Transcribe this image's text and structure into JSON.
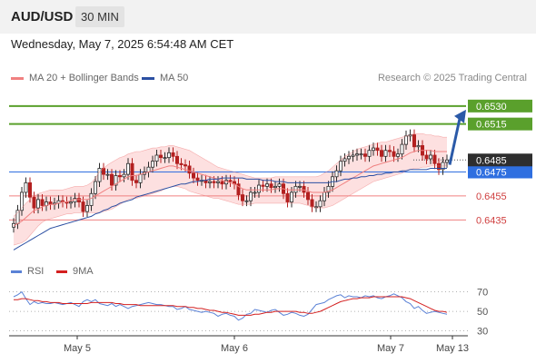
{
  "header": {
    "symbol": "AUD/USD",
    "timeframe": "30 MIN",
    "datetime": "Wednesday, May 7, 2025 6:54:48 AM CET"
  },
  "legend": {
    "bb_label": "MA 20 + Bollinger Bands",
    "ma50_label": "MA 50",
    "copyright": "Research © 2025 Trading Central",
    "rsi_label": "RSI",
    "rsi_ma_label": "9MA"
  },
  "colors": {
    "up_candle": "#2c2c2c",
    "down_candle": "#b32020",
    "bb_fill": "#fde0e0",
    "bb_line": "#f08080",
    "ma50": "#2b4fa2",
    "target": "#5aa02c",
    "support": "#f08080",
    "pivot": "#2f6fe0",
    "arrow": "#2b5aa8",
    "rsi": "#5b82d6",
    "rsi_ma": "#d42020"
  },
  "chart_data": [
    {
      "type": "candlestick",
      "x_ticks": [
        "May 5",
        "May 6",
        "May 7",
        "May 13"
      ],
      "ylim": [
        0.6405,
        0.6545
      ],
      "levels": [
        {
          "price": 0.653,
          "label": "0.6530",
          "kind": "target"
        },
        {
          "price": 0.6515,
          "label": "0.6515",
          "kind": "target"
        },
        {
          "price": 0.6475,
          "label": "0.6475",
          "kind": "pivot"
        },
        {
          "price": 0.6455,
          "label": "0.6455",
          "kind": "support"
        },
        {
          "price": 0.6435,
          "label": "0.6435",
          "kind": "support"
        }
      ],
      "last_price": {
        "price": 0.6485,
        "label": "0.6485"
      },
      "close": [
        0.6432,
        0.6443,
        0.6458,
        0.6466,
        0.6454,
        0.6445,
        0.6452,
        0.6447,
        0.645,
        0.6448,
        0.6449,
        0.6451,
        0.645,
        0.6449,
        0.645,
        0.6453,
        0.645,
        0.6442,
        0.6447,
        0.6457,
        0.6467,
        0.6478,
        0.6473,
        0.6473,
        0.6464,
        0.6472,
        0.6471,
        0.6473,
        0.6482,
        0.6468,
        0.6466,
        0.6473,
        0.6475,
        0.6479,
        0.6484,
        0.6489,
        0.6487,
        0.6487,
        0.6491,
        0.6488,
        0.6482,
        0.6481,
        0.648,
        0.6474,
        0.647,
        0.6468,
        0.6468,
        0.6466,
        0.6467,
        0.6466,
        0.6467,
        0.6465,
        0.6468,
        0.6467,
        0.6465,
        0.6456,
        0.6451,
        0.6451,
        0.6458,
        0.6458,
        0.6464,
        0.6463,
        0.6465,
        0.6462,
        0.6463,
        0.6465,
        0.6457,
        0.645,
        0.6458,
        0.6463,
        0.6463,
        0.6458,
        0.6452,
        0.6446,
        0.6446,
        0.6451,
        0.6458,
        0.6463,
        0.6471,
        0.6476,
        0.6484,
        0.6486,
        0.6488,
        0.6489,
        0.649,
        0.649,
        0.6488,
        0.6493,
        0.6495,
        0.6493,
        0.6488,
        0.6493,
        0.6492,
        0.6488,
        0.649,
        0.6498,
        0.6505,
        0.6506,
        0.6496,
        0.6497,
        0.6489,
        0.6486,
        0.6489,
        0.6482,
        0.6477,
        0.6483,
        0.6485
      ],
      "ma20": [
        0.643,
        0.6432,
        0.6434,
        0.6437,
        0.644,
        0.6443,
        0.6444,
        0.6446,
        0.6447,
        0.6448,
        0.6448,
        0.6449,
        0.645,
        0.645,
        0.6451,
        0.6452,
        0.6452,
        0.6452,
        0.6452,
        0.6453,
        0.6455,
        0.6457,
        0.6459,
        0.6461,
        0.6463,
        0.6465,
        0.6467,
        0.6469,
        0.6471,
        0.6472,
        0.6472,
        0.6473,
        0.6474,
        0.6475,
        0.6476,
        0.6477,
        0.6478,
        0.6479,
        0.648,
        0.648,
        0.6479,
        0.6478,
        0.6477,
        0.6476,
        0.6475,
        0.6474,
        0.6473,
        0.6472,
        0.6471,
        0.647,
        0.6469,
        0.6468,
        0.6467,
        0.6466,
        0.6465,
        0.6463,
        0.6461,
        0.646,
        0.646,
        0.646,
        0.646,
        0.646,
        0.646,
        0.646,
        0.6461,
        0.6461,
        0.6461,
        0.646,
        0.646,
        0.646,
        0.646,
        0.646,
        0.6459,
        0.6458,
        0.6458,
        0.6458,
        0.6458,
        0.6459,
        0.646,
        0.6462,
        0.6464,
        0.6466,
        0.6468,
        0.647,
        0.6472,
        0.6474,
        0.6476,
        0.6478,
        0.648,
        0.6481,
        0.6482,
        0.6483,
        0.6484,
        0.6485,
        0.6486,
        0.6487,
        0.6489,
        0.6491,
        0.6492,
        0.6493,
        0.6493,
        0.6493,
        0.6493,
        0.6492,
        0.6492,
        0.6492,
        0.6492
      ],
      "bb_upper": [
        0.6438,
        0.6441,
        0.6445,
        0.6449,
        0.6452,
        0.6455,
        0.6457,
        0.6458,
        0.6459,
        0.646,
        0.646,
        0.646,
        0.646,
        0.6461,
        0.6462,
        0.6463,
        0.6463,
        0.6463,
        0.6464,
        0.6466,
        0.647,
        0.6475,
        0.6478,
        0.6481,
        0.6483,
        0.6485,
        0.6487,
        0.6488,
        0.649,
        0.6491,
        0.6492,
        0.6492,
        0.6493,
        0.6494,
        0.6495,
        0.6495,
        0.6496,
        0.6496,
        0.6497,
        0.6497,
        0.6496,
        0.6495,
        0.6494,
        0.6493,
        0.6491,
        0.6489,
        0.6487,
        0.6485,
        0.6483,
        0.6481,
        0.6479,
        0.6478,
        0.6477,
        0.6476,
        0.6475,
        0.6474,
        0.6473,
        0.6472,
        0.6471,
        0.647,
        0.647,
        0.647,
        0.647,
        0.647,
        0.6471,
        0.6471,
        0.6471,
        0.6471,
        0.6471,
        0.6471,
        0.6471,
        0.6471,
        0.6471,
        0.6471,
        0.6471,
        0.6472,
        0.6474,
        0.6476,
        0.6479,
        0.6482,
        0.6485,
        0.6488,
        0.649,
        0.6492,
        0.6494,
        0.6495,
        0.6496,
        0.6497,
        0.6498,
        0.6499,
        0.65,
        0.65,
        0.6501,
        0.6502,
        0.6503,
        0.6504,
        0.6505,
        0.6506,
        0.6507,
        0.6507,
        0.6507,
        0.6506,
        0.6506,
        0.6505,
        0.6505,
        0.6504,
        0.6504
      ],
      "bb_lower": [
        0.6414,
        0.6415,
        0.6416,
        0.6418,
        0.6422,
        0.6426,
        0.643,
        0.6433,
        0.6435,
        0.6436,
        0.6437,
        0.6438,
        0.6439,
        0.644,
        0.644,
        0.6441,
        0.6441,
        0.6441,
        0.6441,
        0.6441,
        0.6441,
        0.6441,
        0.6442,
        0.6443,
        0.6444,
        0.6446,
        0.6448,
        0.645,
        0.6452,
        0.6453,
        0.6453,
        0.6454,
        0.6455,
        0.6456,
        0.6457,
        0.6458,
        0.6459,
        0.6461,
        0.6462,
        0.6463,
        0.6463,
        0.6462,
        0.6461,
        0.6459,
        0.6458,
        0.6457,
        0.6456,
        0.6455,
        0.6454,
        0.6453,
        0.6453,
        0.6452,
        0.6451,
        0.645,
        0.6449,
        0.6448,
        0.6448,
        0.6448,
        0.6448,
        0.6449,
        0.6449,
        0.6449,
        0.6449,
        0.6449,
        0.6449,
        0.6449,
        0.6449,
        0.6449,
        0.6449,
        0.6449,
        0.6449,
        0.6448,
        0.6447,
        0.6446,
        0.6445,
        0.6445,
        0.6445,
        0.6446,
        0.6447,
        0.6449,
        0.6451,
        0.6453,
        0.6455,
        0.6457,
        0.6459,
        0.6461,
        0.6463,
        0.6465,
        0.6467,
        0.6468,
        0.6469,
        0.647,
        0.6471,
        0.6472,
        0.6473,
        0.6474,
        0.6476,
        0.6477,
        0.6478,
        0.6478,
        0.6479,
        0.6479,
        0.648,
        0.648,
        0.648,
        0.648,
        0.648
      ],
      "ma50": [
        0.641,
        0.6412,
        0.6414,
        0.6416,
        0.6418,
        0.642,
        0.6422,
        0.6424,
        0.6426,
        0.6428,
        0.6429,
        0.643,
        0.6431,
        0.6432,
        0.6433,
        0.6434,
        0.6435,
        0.6436,
        0.6437,
        0.6438,
        0.644,
        0.6441,
        0.6443,
        0.6444,
        0.6446,
        0.6447,
        0.6449,
        0.645,
        0.6451,
        0.6452,
        0.6454,
        0.6455,
        0.6456,
        0.6457,
        0.6458,
        0.6459,
        0.646,
        0.6461,
        0.6462,
        0.6463,
        0.6464,
        0.6465,
        0.6465,
        0.6466,
        0.6467,
        0.6467,
        0.6468,
        0.6468,
        0.6469,
        0.6469,
        0.6469,
        0.647,
        0.647,
        0.647,
        0.647,
        0.647,
        0.647,
        0.6469,
        0.6469,
        0.6469,
        0.6469,
        0.6468,
        0.6468,
        0.6468,
        0.6467,
        0.6467,
        0.6467,
        0.6466,
        0.6466,
        0.6466,
        0.6466,
        0.6466,
        0.6466,
        0.6466,
        0.6466,
        0.6466,
        0.6466,
        0.6466,
        0.6467,
        0.6467,
        0.6468,
        0.6469,
        0.6469,
        0.647,
        0.647,
        0.6471,
        0.6471,
        0.6472,
        0.6472,
        0.6473,
        0.6473,
        0.6474,
        0.6474,
        0.6475,
        0.6475,
        0.6476,
        0.6476,
        0.6477,
        0.6477,
        0.6477,
        0.6477,
        0.6477,
        0.6478,
        0.6478,
        0.6478,
        0.6478,
        0.6478
      ],
      "projection": {
        "from": 0.6481,
        "to": 0.653
      }
    },
    {
      "type": "line",
      "title": "RSI",
      "ylim": [
        25,
        78
      ],
      "y_ticks": [
        70,
        50,
        30
      ],
      "series": [
        {
          "name": "RSI",
          "values": [
            65,
            67,
            70,
            63,
            57,
            60,
            58,
            59,
            58,
            58,
            59,
            58,
            57,
            58,
            59,
            57,
            55,
            60,
            62,
            60,
            62,
            58,
            57,
            56,
            58,
            55,
            57,
            55,
            53,
            55,
            56,
            57,
            58,
            59,
            58,
            57,
            57,
            56,
            55,
            55,
            52,
            53,
            55,
            52,
            51,
            50,
            49,
            50,
            49,
            48,
            45,
            47,
            48,
            46,
            45,
            41,
            43,
            47,
            48,
            52,
            51,
            50,
            49,
            51,
            52,
            49,
            46,
            47,
            49,
            48,
            46,
            45,
            47,
            52,
            57,
            58,
            59,
            62,
            64,
            66,
            67,
            64,
            66,
            65,
            65,
            64,
            66,
            65,
            66,
            64,
            63,
            65,
            66,
            68,
            66,
            64,
            60,
            58,
            53,
            55,
            51,
            48,
            49,
            50,
            49,
            48,
            47
          ]
        },
        {
          "name": "9MA",
          "values": [
            62,
            62,
            63,
            63,
            62,
            61,
            61,
            60,
            60,
            59,
            59,
            59,
            58,
            58,
            58,
            58,
            58,
            58,
            58,
            59,
            59,
            59,
            59,
            59,
            59,
            58,
            58,
            57,
            57,
            57,
            57,
            56,
            56,
            56,
            56,
            56,
            56,
            56,
            56,
            56,
            55,
            55,
            55,
            54,
            54,
            53,
            53,
            52,
            51,
            51,
            50,
            49,
            49,
            48,
            47,
            46,
            46,
            46,
            46,
            47,
            47,
            48,
            49,
            49,
            50,
            50,
            50,
            50,
            50,
            50,
            49,
            49,
            48,
            48,
            49,
            50,
            52,
            54,
            56,
            58,
            60,
            61,
            62,
            63,
            63,
            64,
            64,
            64,
            65,
            65,
            65,
            65,
            65,
            65,
            65,
            65,
            64,
            63,
            61,
            59,
            57,
            55,
            53,
            51,
            50,
            50,
            49
          ]
        }
      ]
    }
  ]
}
